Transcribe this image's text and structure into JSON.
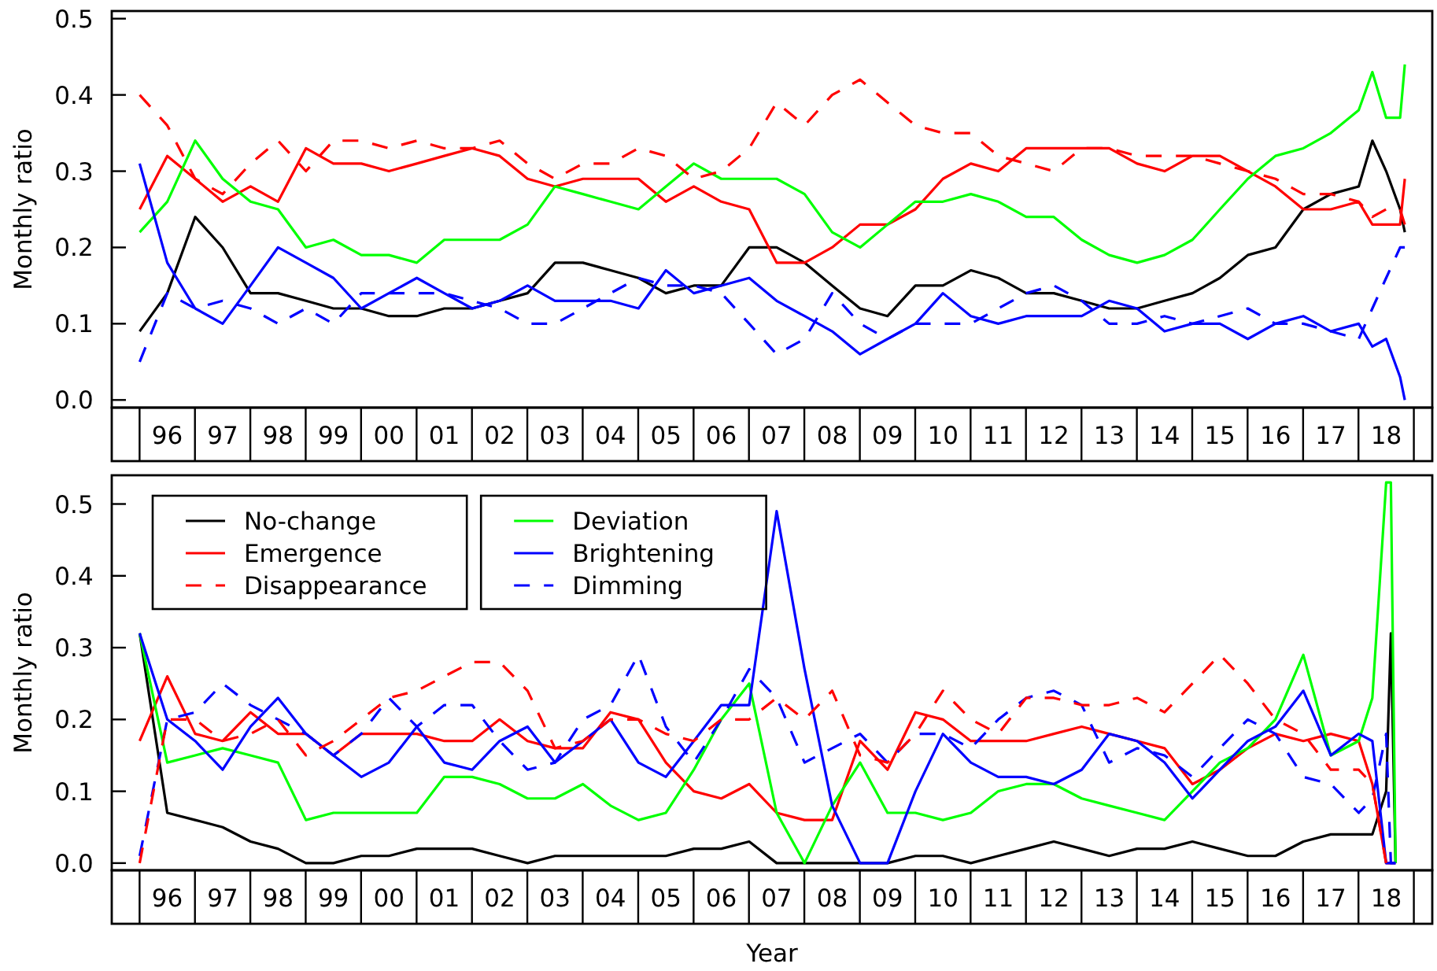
{
  "chart_data": [
    {
      "type": "line",
      "ylabel": "Monthly ratio",
      "xlim": [
        "1995-07",
        "2019-05"
      ],
      "ylim": [
        -0.01,
        0.51
      ],
      "yticks": [
        {
          "value": 0,
          "label": "0.0"
        },
        0.1,
        0.2,
        0.3,
        0.4,
        0.5
      ],
      "xticks": [
        {
          "value": "1996-07",
          "label": "96"
        },
        {
          "value": "1997-07",
          "label": "97"
        },
        {
          "value": "1998-07",
          "label": "98"
        },
        {
          "value": "1999-07",
          "label": "99"
        },
        {
          "value": "2000-07",
          "label": "00"
        },
        {
          "value": "2001-07",
          "label": "01"
        },
        {
          "value": "2002-07",
          "label": "02"
        },
        {
          "value": "2003-07",
          "label": "03"
        },
        {
          "value": "2004-07",
          "label": "04"
        },
        {
          "value": "2005-07",
          "label": "05"
        },
        {
          "value": "2006-07",
          "label": "06"
        },
        {
          "value": "2007-07",
          "label": "07"
        },
        {
          "value": "2008-07",
          "label": "08"
        },
        {
          "value": "2009-07",
          "label": "09"
        },
        {
          "value": "2010-07",
          "label": "10"
        },
        {
          "value": "2011-07",
          "label": "11"
        },
        {
          "value": "2012-07",
          "label": "12"
        },
        {
          "value": "2013-07",
          "label": "13"
        },
        {
          "value": "2014-07",
          "label": "14"
        },
        {
          "value": "2015-07",
          "label": "15"
        },
        {
          "value": "2016-07",
          "label": "16"
        },
        {
          "value": "2017-07",
          "label": "17"
        },
        {
          "value": "2018-07",
          "label": "18"
        }
      ],
      "x": [
        "1996-01",
        "1996-07",
        "1997-01",
        "1997-07",
        "1998-01",
        "1998-07",
        "1999-01",
        "1999-07",
        "2000-01",
        "2000-07",
        "2001-01",
        "2001-07",
        "2002-01",
        "2002-07",
        "2003-01",
        "2003-07",
        "2004-01",
        "2004-07",
        "2005-01",
        "2005-07",
        "2006-01",
        "2006-07",
        "2007-01",
        "2007-07",
        "2008-01",
        "2008-07",
        "2009-01",
        "2009-07",
        "2010-01",
        "2010-07",
        "2011-01",
        "2011-07",
        "2012-01",
        "2012-07",
        "2013-01",
        "2013-07",
        "2014-01",
        "2014-07",
        "2015-01",
        "2015-07",
        "2016-01",
        "2016-07",
        "2017-01",
        "2017-07",
        "2018-01",
        "2018-04",
        "2018-07",
        "2018-10",
        "2018-11"
      ],
      "series": [
        {
          "color": "#000000",
          "values": [
            0.09,
            0.14,
            0.24,
            0.2,
            0.14,
            0.14,
            0.13,
            0.12,
            0.12,
            0.11,
            0.11,
            0.12,
            0.12,
            0.13,
            0.14,
            0.18,
            0.18,
            0.17,
            0.16,
            0.14,
            0.15,
            0.15,
            0.2,
            0.2,
            0.18,
            0.15,
            0.12,
            0.11,
            0.15,
            0.15,
            0.17,
            0.16,
            0.14,
            0.14,
            0.13,
            0.12,
            0.12,
            0.13,
            0.14,
            0.16,
            0.19,
            0.2,
            0.25,
            0.27,
            0.28,
            0.34,
            0.3,
            0.25,
            0.22
          ]
        },
        {
          "color": "#ff0000",
          "values": [
            0.25,
            0.32,
            0.29,
            0.26,
            0.28,
            0.26,
            0.33,
            0.31,
            0.31,
            0.3,
            0.31,
            0.32,
            0.33,
            0.32,
            0.29,
            0.28,
            0.29,
            0.29,
            0.29,
            0.26,
            0.28,
            0.26,
            0.25,
            0.18,
            0.18,
            0.2,
            0.23,
            0.23,
            0.25,
            0.29,
            0.31,
            0.3,
            0.33,
            0.33,
            0.33,
            0.33,
            0.31,
            0.3,
            0.32,
            0.32,
            0.3,
            0.28,
            0.25,
            0.25,
            0.26,
            0.23,
            0.23,
            0.23,
            0.29
          ]
        },
        {
          "color": "#ff0000",
          "line_style": "dashed",
          "values": [
            0.4,
            0.36,
            0.29,
            0.27,
            0.31,
            0.34,
            0.3,
            0.34,
            0.34,
            0.33,
            0.34,
            0.33,
            0.33,
            0.34,
            0.31,
            0.29,
            0.31,
            0.31,
            0.33,
            0.32,
            0.29,
            0.3,
            0.33,
            0.39,
            0.36,
            0.4,
            0.42,
            0.39,
            0.36,
            0.35,
            0.35,
            0.32,
            0.31,
            0.3,
            0.33,
            0.33,
            0.32,
            0.32,
            0.32,
            0.31,
            0.3,
            0.29,
            0.27,
            0.27,
            0.26,
            0.24,
            0.25,
            0.25,
            0.23
          ]
        },
        {
          "color": "#00ff00",
          "values": [
            0.22,
            0.26,
            0.34,
            0.29,
            0.26,
            0.25,
            0.2,
            0.21,
            0.19,
            0.19,
            0.18,
            0.21,
            0.21,
            0.21,
            0.23,
            0.28,
            0.27,
            0.26,
            0.25,
            0.28,
            0.31,
            0.29,
            0.29,
            0.29,
            0.27,
            0.22,
            0.2,
            0.23,
            0.26,
            0.26,
            0.27,
            0.26,
            0.24,
            0.24,
            0.21,
            0.19,
            0.18,
            0.19,
            0.21,
            0.25,
            0.29,
            0.32,
            0.33,
            0.35,
            0.38,
            0.43,
            0.37,
            0.37,
            0.44
          ]
        },
        {
          "color": "#0000ff",
          "values": [
            0.31,
            0.18,
            0.12,
            0.1,
            0.15,
            0.2,
            0.18,
            0.16,
            0.12,
            0.14,
            0.16,
            0.14,
            0.12,
            0.13,
            0.15,
            0.13,
            0.13,
            0.13,
            0.12,
            0.17,
            0.14,
            0.15,
            0.16,
            0.13,
            0.11,
            0.09,
            0.06,
            0.08,
            0.1,
            0.14,
            0.11,
            0.1,
            0.11,
            0.11,
            0.11,
            0.13,
            0.12,
            0.09,
            0.1,
            0.1,
            0.08,
            0.1,
            0.11,
            0.09,
            0.1,
            0.07,
            0.08,
            0.03,
            0
          ]
        },
        {
          "color": "#0000ff",
          "line_style": "dashed",
          "values": [
            0.05,
            0.14,
            0.12,
            0.13,
            0.12,
            0.1,
            0.12,
            0.1,
            0.14,
            0.14,
            0.14,
            0.14,
            0.13,
            0.12,
            0.1,
            0.1,
            0.12,
            0.14,
            0.16,
            0.15,
            0.15,
            0.14,
            0.1,
            0.06,
            0.08,
            0.14,
            0.1,
            0.08,
            0.1,
            0.1,
            0.1,
            0.12,
            0.14,
            0.15,
            0.13,
            0.1,
            0.1,
            0.11,
            0.1,
            0.11,
            0.12,
            0.1,
            0.1,
            0.09,
            0.08,
            0.12,
            0.16,
            0.2,
            0.2
          ]
        }
      ]
    },
    {
      "type": "line",
      "ylabel": "Monthly ratio",
      "xlabel": "Year",
      "legend": "top left",
      "xlim": [
        "1995-07",
        "2019-05"
      ],
      "ylim": [
        -0.01,
        0.54
      ],
      "yticks": [
        {
          "value": 0,
          "label": "0.0"
        },
        0.1,
        0.2,
        0.3,
        0.4,
        0.5
      ],
      "xticks": [
        {
          "value": "1996-07",
          "label": "96"
        },
        {
          "value": "1997-07",
          "label": "97"
        },
        {
          "value": "1998-07",
          "label": "98"
        },
        {
          "value": "1999-07",
          "label": "99"
        },
        {
          "value": "2000-07",
          "label": "00"
        },
        {
          "value": "2001-07",
          "label": "01"
        },
        {
          "value": "2002-07",
          "label": "02"
        },
        {
          "value": "2003-07",
          "label": "03"
        },
        {
          "value": "2004-07",
          "label": "04"
        },
        {
          "value": "2005-07",
          "label": "05"
        },
        {
          "value": "2006-07",
          "label": "06"
        },
        {
          "value": "2007-07",
          "label": "07"
        },
        {
          "value": "2008-07",
          "label": "08"
        },
        {
          "value": "2009-07",
          "label": "09"
        },
        {
          "value": "2010-07",
          "label": "10"
        },
        {
          "value": "2011-07",
          "label": "11"
        },
        {
          "value": "2012-07",
          "label": "12"
        },
        {
          "value": "2013-07",
          "label": "13"
        },
        {
          "value": "2014-07",
          "label": "14"
        },
        {
          "value": "2015-07",
          "label": "15"
        },
        {
          "value": "2016-07",
          "label": "16"
        },
        {
          "value": "2017-07",
          "label": "17"
        },
        {
          "value": "2018-07",
          "label": "18"
        }
      ],
      "x": [
        "1996-01",
        "1996-07",
        "1997-01",
        "1997-07",
        "1998-01",
        "1998-07",
        "1999-01",
        "1999-07",
        "2000-01",
        "2000-07",
        "2001-01",
        "2001-07",
        "2002-01",
        "2002-07",
        "2003-01",
        "2003-07",
        "2004-01",
        "2004-07",
        "2005-01",
        "2005-07",
        "2006-01",
        "2006-07",
        "2007-01",
        "2007-07",
        "2008-01",
        "2008-07",
        "2009-01",
        "2009-07",
        "2010-01",
        "2010-07",
        "2011-01",
        "2011-07",
        "2012-01",
        "2012-07",
        "2013-01",
        "2013-07",
        "2014-01",
        "2014-07",
        "2015-01",
        "2015-07",
        "2016-01",
        "2016-07",
        "2017-01",
        "2017-07",
        "2018-01",
        "2018-04",
        "2018-07",
        "2018-08",
        "2018-09"
      ],
      "series": [
        {
          "name": "No-change",
          "color": "#000000",
          "values": [
            0.32,
            0.07,
            0.06,
            0.05,
            0.03,
            0.02,
            0,
            0,
            0.01,
            0.01,
            0.02,
            0.02,
            0.02,
            0.01,
            0,
            0.01,
            0.01,
            0.01,
            0.01,
            0.01,
            0.02,
            0.02,
            0.03,
            0,
            0,
            0,
            0,
            0,
            0.01,
            0.01,
            0,
            0.01,
            0.02,
            0.03,
            0.02,
            0.01,
            0.02,
            0.02,
            0.03,
            0.02,
            0.01,
            0.01,
            0.03,
            0.04,
            0.04,
            0.04,
            0.1,
            0.32,
            0
          ]
        },
        {
          "name": "Emergence",
          "color": "#ff0000",
          "values": [
            0.17,
            0.26,
            0.18,
            0.17,
            0.21,
            0.18,
            0.18,
            0.15,
            0.18,
            0.18,
            0.18,
            0.17,
            0.17,
            0.2,
            0.17,
            0.16,
            0.16,
            0.21,
            0.2,
            0.14,
            0.1,
            0.09,
            0.11,
            0.07,
            0.06,
            0.06,
            0.17,
            0.13,
            0.21,
            0.2,
            0.17,
            0.17,
            0.17,
            0.18,
            0.19,
            0.18,
            0.17,
            0.16,
            0.11,
            0.13,
            0.16,
            0.18,
            0.17,
            0.18,
            0.17,
            0.11,
            0,
            0,
            0
          ]
        },
        {
          "name": "Disappearance",
          "color": "#ff0000",
          "line_style": "dashed",
          "values": [
            0,
            0.2,
            0.2,
            0.17,
            0.18,
            0.2,
            0.15,
            0.17,
            0.2,
            0.23,
            0.24,
            0.26,
            0.28,
            0.28,
            0.24,
            0.16,
            0.17,
            0.2,
            0.2,
            0.18,
            0.17,
            0.2,
            0.2,
            0.23,
            0.2,
            0.24,
            0.15,
            0.14,
            0.18,
            0.24,
            0.2,
            0.18,
            0.23,
            0.23,
            0.22,
            0.22,
            0.23,
            0.21,
            0.25,
            0.29,
            0.25,
            0.2,
            0.18,
            0.13,
            0.13,
            0.11,
            0,
            null,
            null
          ]
        },
        {
          "name": "Deviation",
          "color": "#00ff00",
          "values": [
            0.32,
            0.14,
            0.15,
            0.16,
            0.15,
            0.14,
            0.06,
            0.07,
            0.07,
            0.07,
            0.07,
            0.12,
            0.12,
            0.11,
            0.09,
            0.09,
            0.11,
            0.08,
            0.06,
            0.07,
            0.13,
            0.2,
            0.25,
            0.07,
            0,
            0.08,
            0.14,
            0.07,
            0.07,
            0.06,
            0.07,
            0.1,
            0.11,
            0.11,
            0.09,
            0.08,
            0.07,
            0.06,
            0.1,
            0.14,
            0.16,
            0.2,
            0.29,
            0.15,
            0.17,
            0.23,
            0.53,
            0.53,
            0
          ]
        },
        {
          "name": "Brightening",
          "color": "#0000ff",
          "values": [
            0.32,
            0.2,
            0.17,
            0.13,
            0.19,
            0.23,
            0.18,
            0.15,
            0.12,
            0.14,
            0.19,
            0.14,
            0.13,
            0.17,
            0.19,
            0.14,
            0.17,
            0.2,
            0.14,
            0.12,
            0.17,
            0.22,
            0.22,
            0.49,
            0.27,
            0.08,
            0,
            0,
            0.1,
            0.18,
            0.14,
            0.12,
            0.12,
            0.11,
            0.13,
            0.18,
            0.17,
            0.14,
            0.09,
            0.13,
            0.17,
            0.19,
            0.24,
            0.15,
            0.18,
            0.17,
            0,
            0,
            0
          ]
        },
        {
          "name": "Dimming",
          "color": "#0000ff",
          "line_style": "dashed",
          "values": [
            0.01,
            0.2,
            0.21,
            0.25,
            0.22,
            0.2,
            0.18,
            0.15,
            0.18,
            0.23,
            0.19,
            0.22,
            0.22,
            0.17,
            0.13,
            0.14,
            0.2,
            0.22,
            0.29,
            0.19,
            0.14,
            0.2,
            0.27,
            0.23,
            0.14,
            0.16,
            0.18,
            0.14,
            0.18,
            0.18,
            0.16,
            0.2,
            0.23,
            0.24,
            0.22,
            0.14,
            0.16,
            0.15,
            0.12,
            0.16,
            0.2,
            0.18,
            0.12,
            0.11,
            0.07,
            0.09,
            0.18,
            0,
            0
          ]
        }
      ]
    }
  ]
}
